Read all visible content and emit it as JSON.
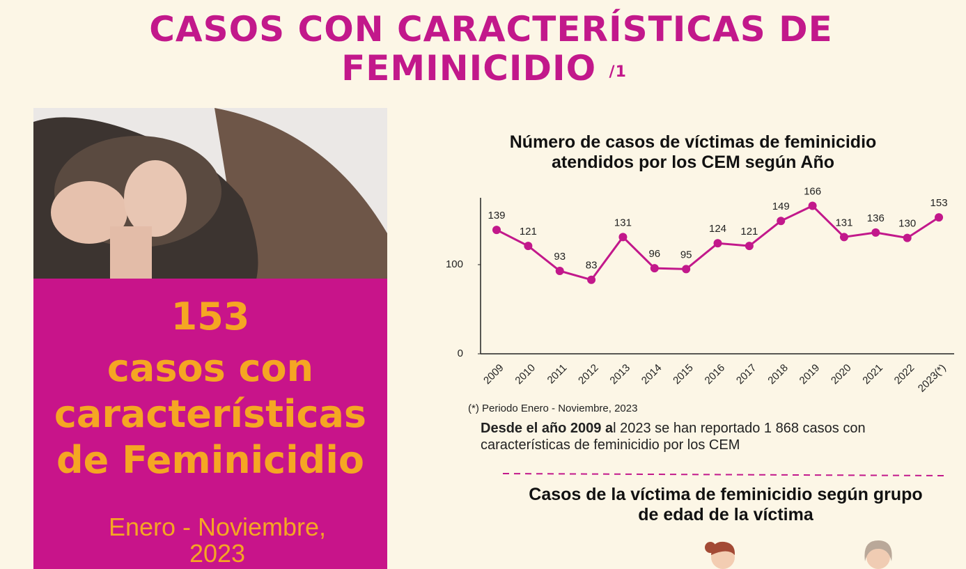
{
  "header": {
    "title_lines": [
      "CASOS CON CARACTERÍSTICAS DE",
      "FEMINICIDIO"
    ],
    "footnote_mark": "/1"
  },
  "panel": {
    "lines": [
      "153",
      "casos con",
      "características",
      "de Feminicidio"
    ],
    "period_lines": [
      "Enero - Noviembre,",
      "2023"
    ]
  },
  "chart_data": {
    "type": "line",
    "title": [
      "Número de casos de víctimas de feminicidio",
      "atendidos por los CEM según Año"
    ],
    "categories": [
      "2009",
      "2010",
      "2011",
      "2012",
      "2013",
      "2014",
      "2015",
      "2016",
      "2017",
      "2018",
      "2019",
      "2020",
      "2021",
      "2022",
      "2023(*)"
    ],
    "values": [
      139,
      121,
      93,
      83,
      131,
      96,
      95,
      124,
      121,
      149,
      166,
      131,
      136,
      130,
      153
    ],
    "color": "#c2188b",
    "ylim": [
      0,
      175
    ],
    "yticks": [
      0,
      100
    ],
    "grid": false
  },
  "notes": {
    "period_note": "(*) Periodo Enero - Noviembre, 2023",
    "summary_bold": "Desde el año 2009 a",
    "summary_rest": "l 2023 se han reportado 1 868 casos con características de feminicidio por los CEM"
  },
  "section2": {
    "title_lines": [
      "Casos de la víctima de feminicidio según grupo",
      "de edad de la víctima"
    ]
  }
}
